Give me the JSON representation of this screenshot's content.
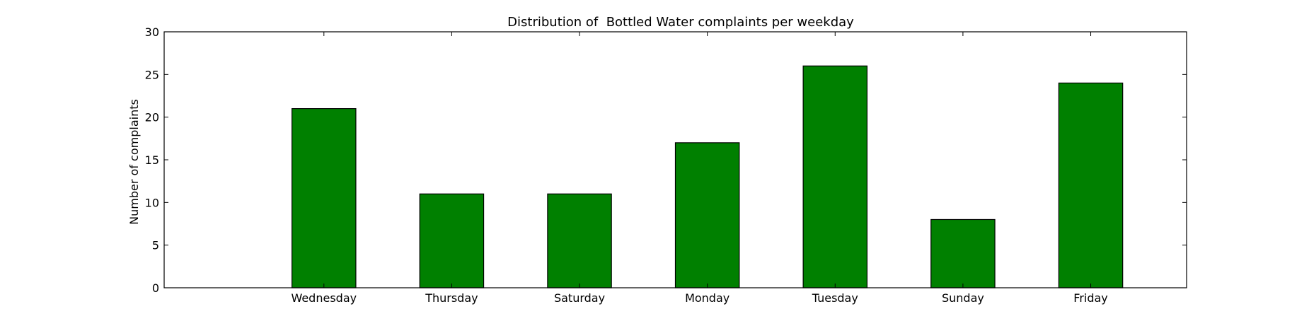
{
  "chart_data": {
    "type": "bar",
    "title": "Distribution of  Bottled Water complaints per weekday",
    "xlabel": "",
    "ylabel": "Number of complaints",
    "categories": [
      "Wednesday",
      "Thursday",
      "Saturday",
      "Monday",
      "Tuesday",
      "Sunday",
      "Friday"
    ],
    "values": [
      21,
      11,
      11,
      17,
      26,
      8,
      24
    ],
    "ylim": [
      0,
      30
    ],
    "yticks": [
      0,
      5,
      10,
      15,
      20,
      25,
      30
    ],
    "xlim": [
      -1.25,
      6.75
    ],
    "bar_width": 0.5,
    "grid": false,
    "legend": "none",
    "colors": {
      "bar_fill": "#008000",
      "bar_edge": "#000000",
      "axis": "#000000",
      "background": "#ffffff"
    }
  }
}
